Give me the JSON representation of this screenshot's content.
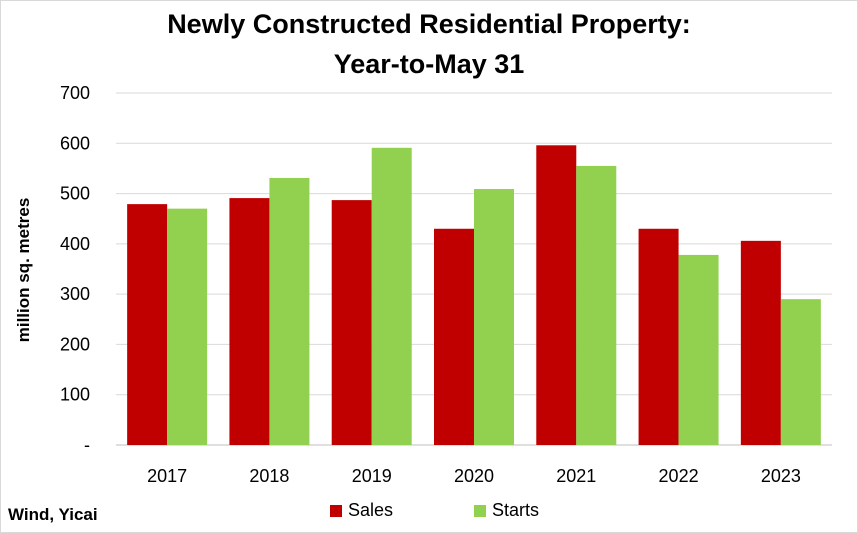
{
  "chart_data": {
    "type": "bar",
    "title": "Newly Constructed Residential Property:",
    "subtitle": "Year-to-May 31",
    "ylabel": "million sq. metres",
    "xlabel": "",
    "categories": [
      "2017",
      "2018",
      "2019",
      "2020",
      "2021",
      "2022",
      "2023"
    ],
    "series": [
      {
        "name": "Sales",
        "color": "#c00000",
        "values": [
          479,
          491,
          487,
          430,
          596,
          430,
          406
        ]
      },
      {
        "name": "Starts",
        "color": "#92d050",
        "values": [
          470,
          531,
          591,
          509,
          555,
          378,
          290
        ]
      }
    ],
    "ylim": [
      0,
      700
    ],
    "yticks": [
      0,
      100,
      200,
      300,
      400,
      500,
      600,
      700
    ],
    "ytick_labels": [
      "-",
      "100",
      "200",
      "300",
      "400",
      "500",
      "600",
      "700"
    ],
    "grid": true,
    "legend": "bottom",
    "source": "Wind, Yicai"
  }
}
